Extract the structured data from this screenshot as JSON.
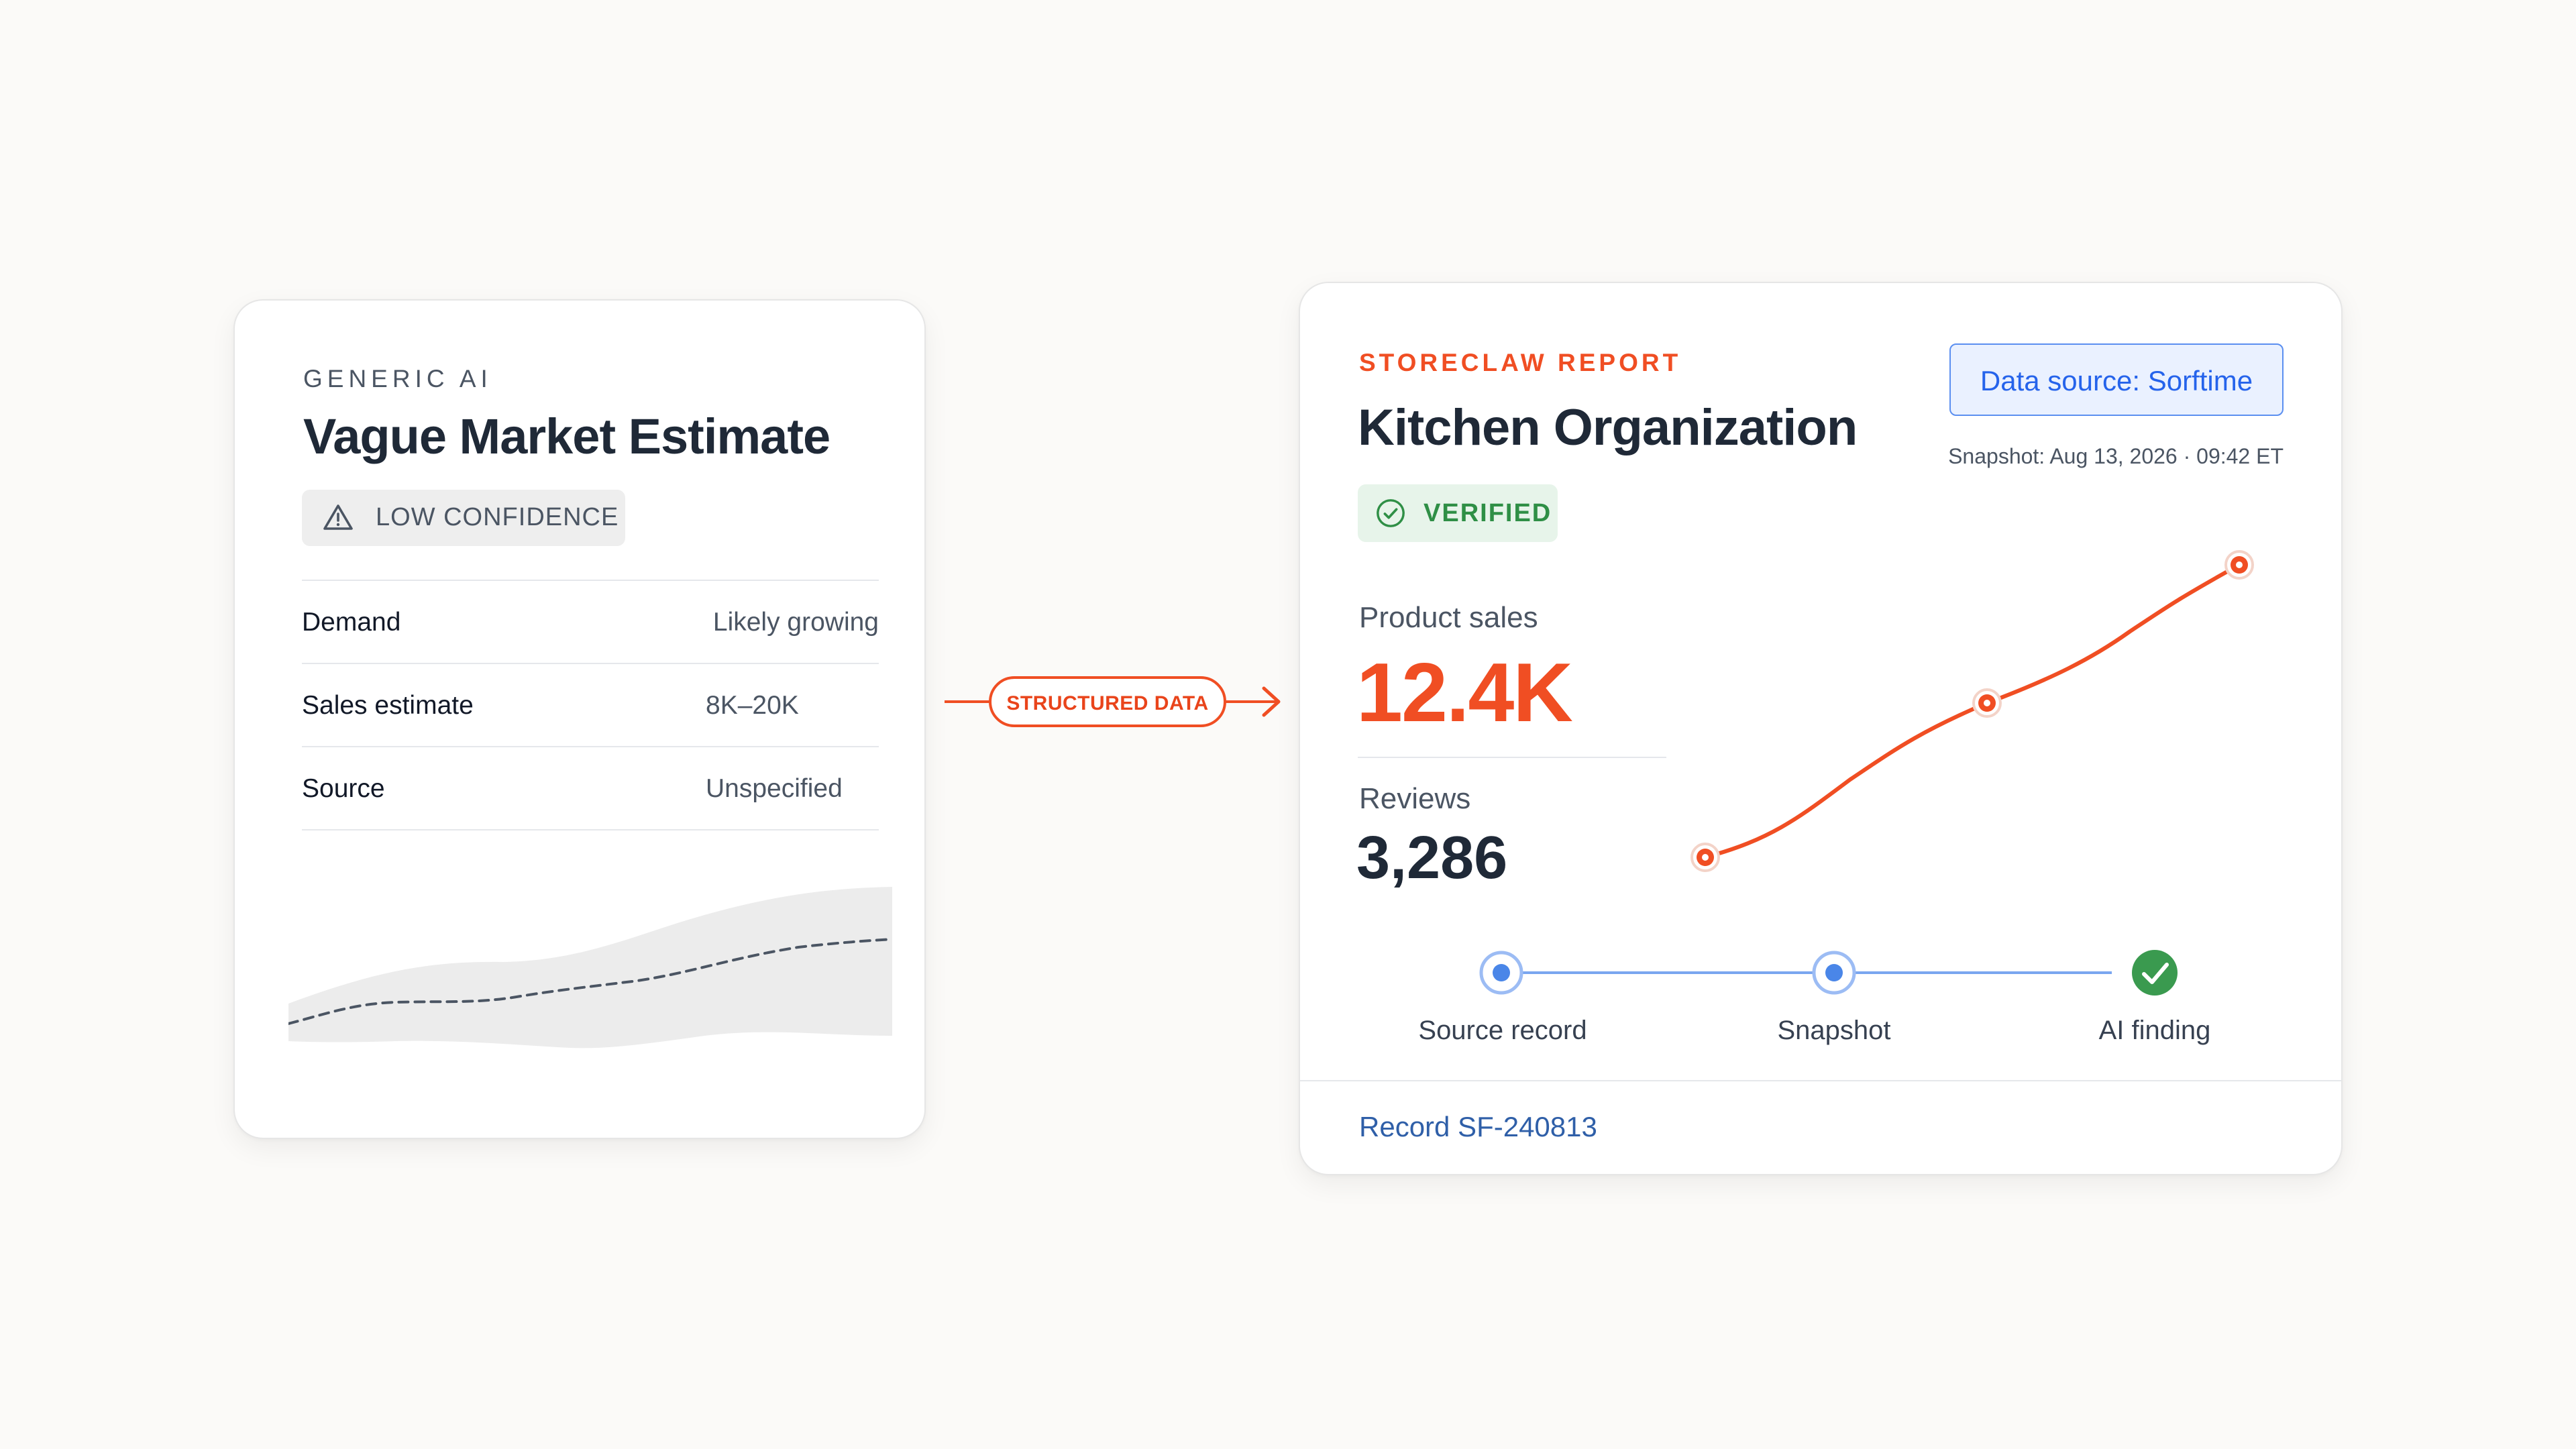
{
  "left_card": {
    "eyebrow": "GENERIC AI",
    "title": "Vague Market Estimate",
    "badge": {
      "label": "LOW CONFIDENCE",
      "icon": "warning-triangle-icon"
    },
    "rows": [
      {
        "label": "Demand",
        "value": "Likely growing"
      },
      {
        "label": "Sales estimate",
        "value": "8K–20K"
      },
      {
        "label": "Source",
        "value": "Unspecified"
      }
    ]
  },
  "connector": {
    "label": "STRUCTURED DATA"
  },
  "right_card": {
    "eyebrow": "STORECLAW REPORT",
    "title": "Kitchen Organization",
    "badge": {
      "label": "VERIFIED",
      "icon": "check-circle-icon"
    },
    "data_source_button": "Data source: Sorftime",
    "snapshot": "Snapshot: Aug 13, 2026 · 09:42 ET",
    "metrics": [
      {
        "label": "Product sales",
        "value": "12.4K"
      },
      {
        "label": "Reviews",
        "value": "3,286"
      }
    ],
    "pipeline": [
      {
        "label": "Source record",
        "state": "dot"
      },
      {
        "label": "Snapshot",
        "state": "dot"
      },
      {
        "label": "AI finding",
        "state": "check"
      }
    ],
    "record": "Record SF-240813"
  },
  "colors": {
    "accent": "#f04e23",
    "link_blue": "#2563eb",
    "verified_green": "#2f8f46",
    "pipeline_blue": "#4a86e8",
    "check_green": "#3a9a4f"
  }
}
